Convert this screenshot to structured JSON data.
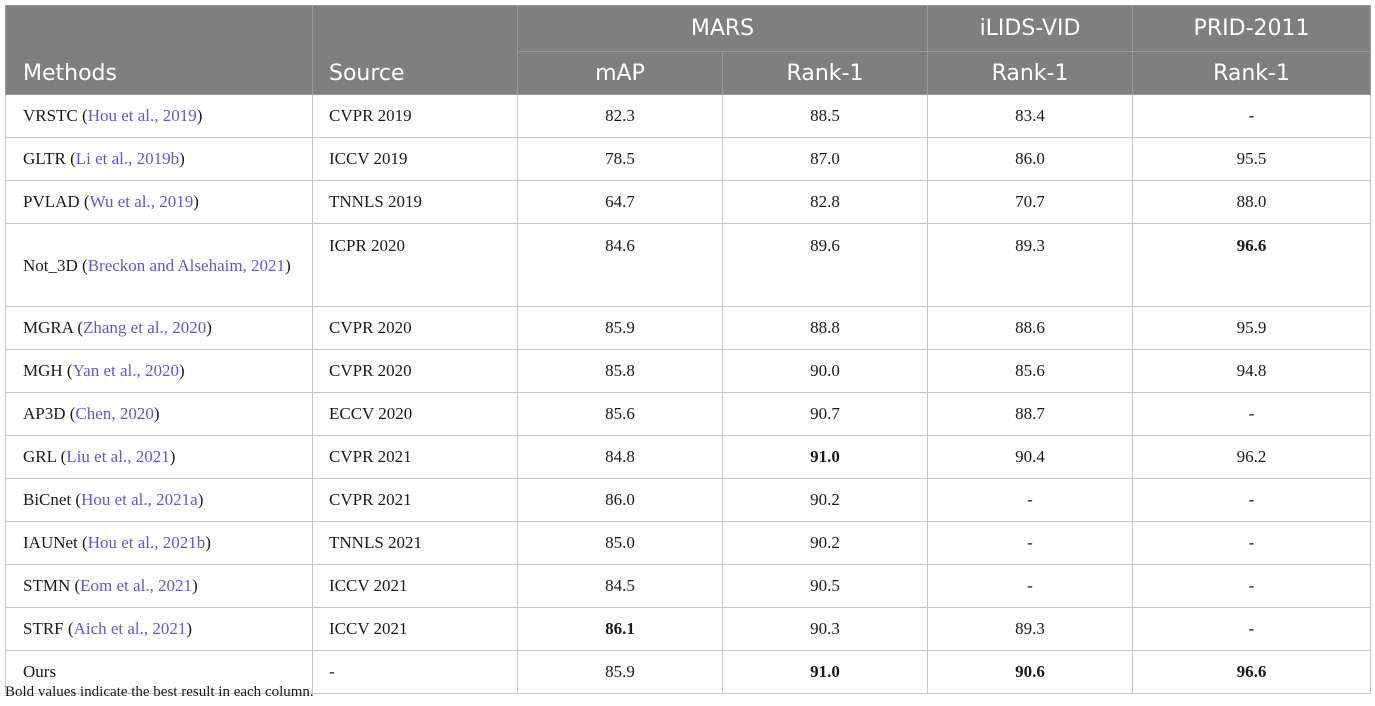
{
  "header": {
    "methods": "Methods",
    "source": "Source",
    "groups": [
      "MARS",
      "iLIDS-VID",
      "PRID-2011"
    ],
    "subcols": [
      "mAP",
      "Rank-1",
      "Rank-1",
      "Rank-1"
    ]
  },
  "rows": [
    {
      "name": "VRSTC",
      "ref": "Hou et al., 2019",
      "source": "CVPR 2019",
      "values": [
        "82.3",
        "88.5",
        "83.4",
        "-"
      ],
      "bold": []
    },
    {
      "name": "GLTR",
      "ref": "Li et al., 2019b",
      "source": "ICCV 2019",
      "values": [
        "78.5",
        "87.0",
        "86.0",
        "95.5"
      ],
      "bold": []
    },
    {
      "name": "PVLAD",
      "ref": "Wu et al., 2019",
      "source": "TNNLS 2019",
      "values": [
        "64.7",
        "82.8",
        "70.7",
        "88.0"
      ],
      "bold": []
    },
    {
      "name": "Not_3D",
      "ref": "Breckon and Alsehaim, 2021",
      "source": "ICPR 2020",
      "values": [
        "84.6",
        "89.6",
        "89.3",
        "96.6"
      ],
      "bold": [
        3
      ]
    },
    {
      "name": "MGRA",
      "ref": "Zhang et al., 2020",
      "source": "CVPR 2020",
      "values": [
        "85.9",
        "88.8",
        "88.6",
        "95.9"
      ],
      "bold": []
    },
    {
      "name": "MGH",
      "ref": "Yan et al., 2020",
      "source": "CVPR 2020",
      "values": [
        "85.8",
        "90.0",
        "85.6",
        "94.8"
      ],
      "bold": []
    },
    {
      "name": "AP3D",
      "ref": "Chen, 2020",
      "source": "ECCV 2020",
      "values": [
        "85.6",
        "90.7",
        "88.7",
        "-"
      ],
      "bold": []
    },
    {
      "name": "GRL",
      "ref": "Liu et al., 2021",
      "source": "CVPR 2021",
      "values": [
        "84.8",
        "91.0",
        "90.4",
        "96.2"
      ],
      "bold": [
        1
      ]
    },
    {
      "name": "BiCnet",
      "ref": "Hou et al., 2021a",
      "source": "CVPR 2021",
      "values": [
        "86.0",
        "90.2",
        "-",
        "-"
      ],
      "bold": []
    },
    {
      "name": "IAUNet",
      "ref": "Hou et al., 2021b",
      "source": "TNNLS 2021",
      "values": [
        "85.0",
        "90.2",
        "-",
        "-"
      ],
      "bold": []
    },
    {
      "name": "STMN",
      "ref": "Eom et al., 2021",
      "source": "ICCV 2021",
      "values": [
        "84.5",
        "90.5",
        "-",
        "-"
      ],
      "bold": []
    },
    {
      "name": "STRF",
      "ref": "Aich et al., 2021",
      "source": "ICCV 2021",
      "values": [
        "86.1",
        "90.3",
        "89.3",
        "-"
      ],
      "bold": [
        0
      ]
    },
    {
      "name": "Ours",
      "ref": "",
      "source": "-",
      "values": [
        "85.9",
        "91.0",
        "90.6",
        "96.6"
      ],
      "bold": [
        1,
        2,
        3
      ]
    }
  ],
  "footnote": "Bold values indicate the best result in each column.",
  "colors": {
    "header_bg": "#7f7f7f",
    "header_text": "#ffffff",
    "link": "#5a5ad6",
    "border": "#c6c6c6"
  }
}
